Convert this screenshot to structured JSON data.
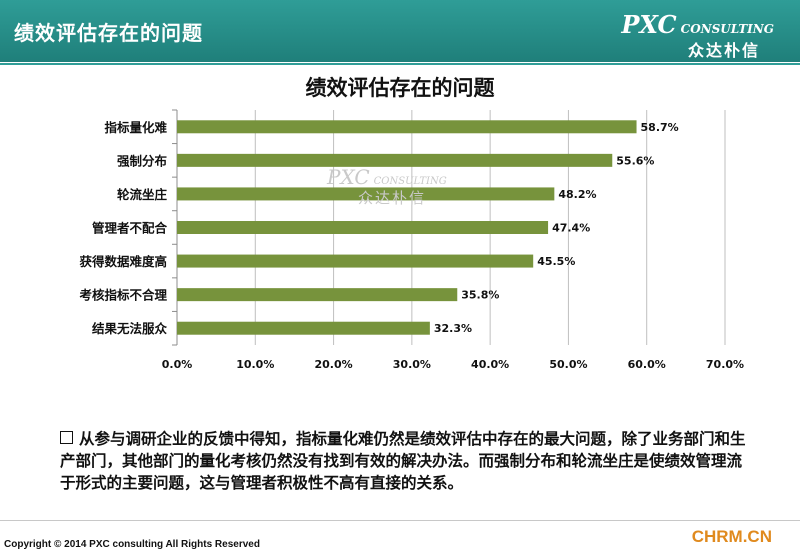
{
  "header": {
    "title": "绩效评估存在的问题",
    "logo_main": "PXC",
    "logo_sub": "CONSULTING",
    "logo_cn": "众达朴信"
  },
  "watermark": {
    "main": "PXC",
    "sub": "CONSULTING",
    "cn": "众达朴信"
  },
  "chart_data": {
    "type": "bar",
    "orientation": "horizontal",
    "title": "绩效评估存在的问题",
    "categories": [
      "指标量化难",
      "强制分布",
      "轮流坐庄",
      "管理者不配合",
      "获得数据难度高",
      "考核指标不合理",
      "结果无法服众"
    ],
    "values": [
      58.7,
      55.6,
      48.2,
      47.4,
      45.5,
      35.8,
      32.3
    ],
    "value_labels": [
      "58.7%",
      "55.6%",
      "48.2%",
      "47.4%",
      "45.5%",
      "35.8%",
      "32.3%"
    ],
    "xlim": [
      0,
      70
    ],
    "x_ticks": [
      "0.0%",
      "10.0%",
      "20.0%",
      "30.0%",
      "40.0%",
      "50.0%",
      "60.0%",
      "70.0%"
    ],
    "grid": true,
    "bar_color": "#77933c",
    "legend": "none"
  },
  "note": {
    "text": "从参与调研企业的反馈中得知，指标量化难仍然是绩效评估中存在的最大问题，除了业务部门和生产部门，其他部门的量化考核仍然没有找到有效的解决办法。而强制分布和轮流坐庄是使绩效管理流于形式的主要问题，这与管理者积极性不高有直接的关系。"
  },
  "footer": {
    "copyright": "Copyright © 2014  PXC consulting All Rights Reserved",
    "site": "CHRM.CN"
  }
}
